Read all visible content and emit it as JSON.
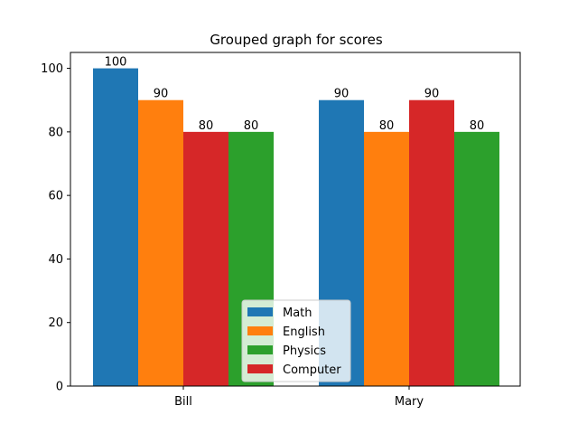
{
  "chart_data": {
    "type": "bar",
    "title": "Grouped graph for scores",
    "xlabel": "",
    "ylabel": "",
    "categories": [
      "Bill",
      "Mary"
    ],
    "series": [
      {
        "name": "Math",
        "color": "#1f77b4",
        "values": [
          100,
          90
        ]
      },
      {
        "name": "English",
        "color": "#ff7f0e",
        "values": [
          90,
          80
        ]
      },
      {
        "name": "Computer",
        "color": "#d62728",
        "values": [
          80,
          90
        ]
      },
      {
        "name": "Physics",
        "color": "#2ca02c",
        "values": [
          80,
          80
        ]
      }
    ],
    "legend_order": [
      "Math",
      "English",
      "Physics",
      "Computer"
    ],
    "legend_position": "lower center",
    "ylim": [
      0,
      105
    ],
    "yticks": [
      0,
      20,
      40,
      60,
      80,
      100
    ],
    "grid": false,
    "data_labels": true
  }
}
